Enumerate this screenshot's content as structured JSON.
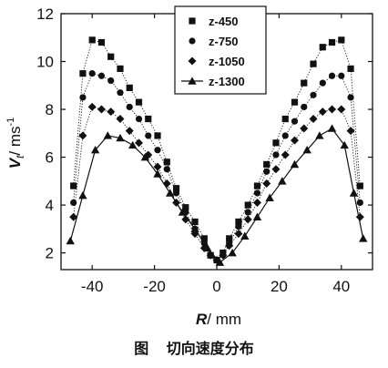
{
  "chart_data": {
    "type": "scatter",
    "xlabel_italic": "R",
    "xlabel_unit": "/ mm",
    "ylabel_italic": "V",
    "ylabel_sub": "t",
    "ylabel_unit": "/ ms",
    "ylabel_sup": "-1",
    "xlim": [
      -50,
      50
    ],
    "ylim": [
      1.3,
      12
    ],
    "xticks": [
      -40,
      -20,
      0,
      20,
      40
    ],
    "yticks": [
      2,
      4,
      6,
      8,
      10,
      12
    ],
    "legend_position": "top-center",
    "series": [
      {
        "name": "z-450",
        "marker": "square",
        "line": "dotted",
        "x": [
          -46,
          -43,
          -40,
          -37,
          -34,
          -31,
          -28,
          -25,
          -22,
          -19,
          -16,
          -13,
          -10,
          -7,
          -4,
          -2,
          0,
          2,
          4,
          7,
          10,
          13,
          16,
          19,
          22,
          25,
          28,
          31,
          34,
          37,
          40,
          43,
          46
        ],
        "y": [
          4.8,
          9.5,
          10.9,
          10.8,
          10.2,
          9.7,
          8.9,
          8.3,
          7.6,
          6.9,
          5.8,
          4.7,
          3.9,
          3.3,
          2.6,
          1.9,
          1.7,
          2.0,
          2.6,
          3.3,
          4.0,
          4.8,
          5.7,
          6.6,
          7.6,
          8.3,
          9.1,
          9.9,
          10.6,
          10.8,
          10.9,
          9.7,
          4.8
        ]
      },
      {
        "name": "z-750",
        "marker": "circle",
        "line": "dotted",
        "x": [
          -46,
          -43,
          -40,
          -37,
          -34,
          -31,
          -28,
          -25,
          -22,
          -19,
          -16,
          -13,
          -10,
          -7,
          -4,
          -2,
          0,
          2,
          4,
          7,
          10,
          13,
          16,
          19,
          22,
          25,
          28,
          31,
          34,
          37,
          40,
          43,
          46
        ],
        "y": [
          4.1,
          8.5,
          9.5,
          9.4,
          9.2,
          8.7,
          8.1,
          7.6,
          6.9,
          6.3,
          5.5,
          4.5,
          3.7,
          3.0,
          2.4,
          1.9,
          1.7,
          1.9,
          2.4,
          3.1,
          3.7,
          4.5,
          5.4,
          6.1,
          6.9,
          7.5,
          8.1,
          8.6,
          9.1,
          9.4,
          9.4,
          8.5,
          4.1
        ]
      },
      {
        "name": "z-1050",
        "marker": "diamond",
        "line": "dotted",
        "x": [
          -46,
          -43,
          -40,
          -37,
          -34,
          -31,
          -28,
          -25,
          -22,
          -19,
          -16,
          -13,
          -10,
          -7,
          -4,
          -2,
          0,
          2,
          4,
          7,
          10,
          13,
          16,
          19,
          22,
          25,
          28,
          31,
          34,
          37,
          40,
          43,
          46
        ],
        "y": [
          3.5,
          6.9,
          8.1,
          8.0,
          7.9,
          7.6,
          7.1,
          6.6,
          6.1,
          5.6,
          4.9,
          4.1,
          3.4,
          2.8,
          2.2,
          1.9,
          1.7,
          1.9,
          2.3,
          2.8,
          3.4,
          4.1,
          4.9,
          5.5,
          6.1,
          6.7,
          7.2,
          7.6,
          7.9,
          8.0,
          8.0,
          7.1,
          3.5
        ]
      },
      {
        "name": "z-1300",
        "marker": "triangle",
        "line": "solid",
        "x": [
          -47,
          -43,
          -39,
          -35,
          -31,
          -27,
          -23,
          -19,
          -15,
          -11,
          -7,
          -3,
          1,
          5,
          9,
          13,
          17,
          21,
          25,
          29,
          33,
          37,
          41,
          44,
          47
        ],
        "y": [
          2.5,
          4.4,
          6.3,
          6.9,
          6.8,
          6.5,
          6.0,
          5.3,
          4.5,
          3.7,
          3.0,
          2.2,
          1.6,
          2.0,
          2.7,
          3.5,
          4.3,
          5.0,
          5.7,
          6.3,
          6.9,
          7.2,
          6.5,
          4.5,
          2.6
        ]
      }
    ]
  },
  "caption": {
    "figure_label": "图",
    "text": "切向速度分布"
  }
}
